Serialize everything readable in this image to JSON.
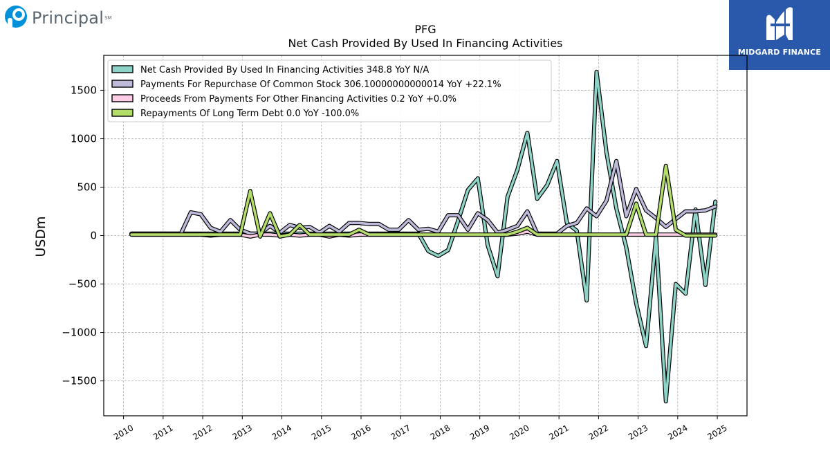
{
  "brand_left": {
    "name": "Principal",
    "mark": "SM"
  },
  "brand_right": {
    "name": "MIDGARD FINANCE"
  },
  "chart_data": {
    "type": "line",
    "title": "PFG",
    "subtitle": "Net Cash Provided By Used In Financing Activities",
    "ylabel": "USDm",
    "xlabel": "",
    "xlim": [
      2009.5,
      2025.75
    ],
    "ylim": [
      -1860,
      1860
    ],
    "x_ticks": [
      "2010",
      "2011",
      "2012",
      "2013",
      "2014",
      "2015",
      "2016",
      "2017",
      "2018",
      "2019",
      "2020",
      "2021",
      "2022",
      "2023",
      "2024",
      "2025"
    ],
    "y_ticks": [
      -1500,
      -1000,
      -500,
      0,
      500,
      1000,
      1500
    ],
    "y_tick_labels": [
      "−1500",
      "−1000",
      "−500",
      "0",
      "500",
      "1000",
      "1500"
    ],
    "grid": true,
    "legend_position": "top-left",
    "x": [
      2010.2,
      2010.45,
      2010.7,
      2010.95,
      2011.2,
      2011.45,
      2011.7,
      2011.95,
      2012.2,
      2012.45,
      2012.7,
      2012.95,
      2013.2,
      2013.45,
      2013.7,
      2013.95,
      2014.2,
      2014.45,
      2014.7,
      2014.95,
      2015.2,
      2015.45,
      2015.7,
      2015.95,
      2016.2,
      2016.45,
      2016.7,
      2016.95,
      2017.2,
      2017.45,
      2017.7,
      2017.95,
      2018.2,
      2018.45,
      2018.7,
      2018.95,
      2019.2,
      2019.45,
      2019.7,
      2019.95,
      2020.2,
      2020.45,
      2020.7,
      2020.95,
      2021.2,
      2021.45,
      2021.7,
      2021.95,
      2022.2,
      2022.45,
      2022.7,
      2022.95,
      2023.2,
      2023.45,
      2023.7,
      2023.95,
      2024.2,
      2024.45,
      2024.7,
      2024.95
    ],
    "series": [
      {
        "name": "Net Cash Provided By Used In Financing Activities",
        "legend": "Net Cash Provided By Used In Financing Activities  348.8 YoY N/A",
        "color": "#8dd3c7",
        "values": [
          20,
          20,
          20,
          20,
          20,
          20,
          20,
          20,
          20,
          20,
          20,
          20,
          20,
          20,
          20,
          20,
          20,
          20,
          20,
          20,
          20,
          20,
          20,
          20,
          20,
          20,
          20,
          20,
          20,
          20,
          -160,
          -210,
          -150,
          150,
          470,
          590,
          -100,
          -420,
          400,
          680,
          1060,
          380,
          520,
          770,
          130,
          50,
          -670,
          1690,
          860,
          280,
          -120,
          -700,
          -1140,
          -10,
          -1710,
          -500,
          -600,
          270,
          -510,
          350
        ]
      },
      {
        "name": "Payments For Repurchase Of Common Stock",
        "legend": "Payments For Repurchase Of Common Stock  306.10000000000014 YoY +22.1%",
        "color": "#bebada",
        "values": [
          20,
          20,
          20,
          20,
          20,
          20,
          240,
          220,
          80,
          40,
          160,
          60,
          20,
          20,
          100,
          30,
          110,
          80,
          90,
          30,
          100,
          40,
          130,
          130,
          120,
          120,
          60,
          60,
          160,
          60,
          70,
          40,
          210,
          210,
          60,
          230,
          160,
          30,
          60,
          100,
          250,
          20,
          20,
          20,
          100,
          130,
          280,
          200,
          360,
          770,
          200,
          480,
          260,
          180,
          90,
          170,
          250,
          250,
          260,
          300
        ]
      },
      {
        "name": "Proceeds From Payments For Other Financing Activities",
        "legend": "Proceeds From Payments For Other Financing Activities  0.2 YoY +0.0%",
        "color": "#fccde5",
        "values": [
          10,
          10,
          10,
          10,
          10,
          10,
          10,
          10,
          0,
          10,
          10,
          10,
          -10,
          10,
          10,
          0,
          10,
          0,
          10,
          10,
          -10,
          10,
          0,
          10,
          10,
          10,
          10,
          10,
          10,
          10,
          10,
          10,
          10,
          10,
          10,
          10,
          10,
          10,
          10,
          20,
          40,
          10,
          10,
          10,
          10,
          10,
          10,
          10,
          10,
          10,
          10,
          10,
          10,
          10,
          10,
          10,
          10,
          10,
          10,
          10
        ]
      },
      {
        "name": "Repayments Of Long Term Debt",
        "legend": "Repayments Of Long Term Debt  0.0 YoY -100.0%",
        "color": "#b3de69",
        "values": [
          10,
          10,
          10,
          10,
          10,
          10,
          10,
          10,
          10,
          10,
          10,
          10,
          460,
          -10,
          230,
          -10,
          10,
          110,
          10,
          10,
          10,
          10,
          10,
          60,
          10,
          10,
          10,
          10,
          10,
          10,
          10,
          10,
          10,
          10,
          10,
          10,
          10,
          10,
          10,
          40,
          80,
          10,
          10,
          10,
          10,
          10,
          10,
          10,
          10,
          10,
          10,
          330,
          10,
          10,
          720,
          60,
          0,
          0,
          0,
          0
        ]
      }
    ]
  }
}
